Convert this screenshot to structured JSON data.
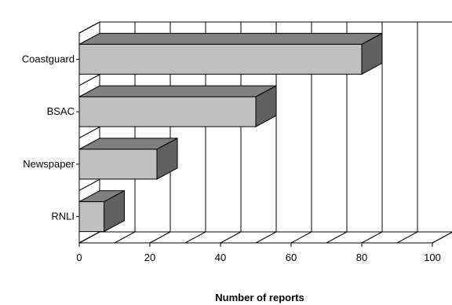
{
  "chart_data": {
    "type": "bar",
    "orientation": "horizontal",
    "style": "3d",
    "categories": [
      "RNLI",
      "Newspaper",
      "BSAC",
      "Coastguard"
    ],
    "values": [
      7,
      22,
      50,
      80
    ],
    "xlabel": "Number of reports",
    "xlim": [
      0,
      100
    ],
    "xticks": [
      0,
      20,
      40,
      60,
      80,
      100
    ],
    "grid": true,
    "legend": "none",
    "colors": {
      "bar_front": "#c0c0c0",
      "bar_top": "#808080",
      "bar_side": "#606060",
      "wall": "#ffffff",
      "grid": "#000000"
    }
  }
}
